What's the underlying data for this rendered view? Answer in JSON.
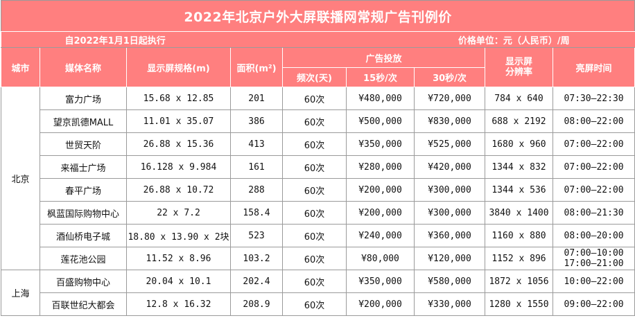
{
  "title": "2022年北京户外大屏联播网常规广告刊例价",
  "effective": "自2022年1月1日起执行",
  "unit": "价格单位：元（人民币）/周",
  "headers": {
    "city": "城市",
    "name": "媒体名称",
    "size": "显示屏规格(m)",
    "area": "面积(m²)",
    "ad": "广告投放",
    "freq": "频次(天)",
    "s15": "15秒/次",
    "s30": "30秒/次",
    "res_l1": "显示屏",
    "res_l2": "分辨率",
    "hours": "亮屏时间"
  },
  "cities": {
    "beijing": "北京",
    "shanghai": "上海"
  },
  "rows": [
    {
      "name": "富力广场",
      "size": "15.68 x 12.85",
      "area": "201",
      "freq": "60次",
      "p15": "¥480,000",
      "p30": "¥720,000",
      "res": "784 x 640",
      "hours": [
        "07:30—22:30"
      ]
    },
    {
      "name": "望京凯德MALL",
      "size": "11.01 x 35.07",
      "area": "386",
      "freq": "60次",
      "p15": "¥500,000",
      "p30": "¥830,000",
      "res": "688 x 2192",
      "hours": [
        "08:00—22:00"
      ]
    },
    {
      "name": "世贸天阶",
      "size": "26.88 x 15.36",
      "area": "413",
      "freq": "60次",
      "p15": "¥350,000",
      "p30": "¥525,000",
      "res": "1680 x 960",
      "hours": [
        "07:00—22:00"
      ]
    },
    {
      "name": "来福士广场",
      "size": "16.128 x 9.984",
      "area": "161",
      "freq": "60次",
      "p15": "¥280,000",
      "p30": "¥420,000",
      "res": "1344 x 832",
      "hours": [
        "07:00—22:00"
      ]
    },
    {
      "name": "春平广场",
      "size": "26.88 x 10.72",
      "area": "288",
      "freq": "60次",
      "p15": "¥200,000",
      "p30": "¥300,000",
      "res": "1344 x 536",
      "hours": [
        "07:00—22:00"
      ]
    },
    {
      "name": "枫蓝国际购物中心",
      "size": "22 x 7.2",
      "area": "158.4",
      "freq": "60次",
      "p15": "¥200,000",
      "p30": "¥300,000",
      "res": "3840 x 1400",
      "hours": [
        "08:00—21:30"
      ]
    },
    {
      "name": "酒仙桥电子城",
      "size": "18.80 x 13.90 x 2块",
      "area": "523",
      "freq": "60次",
      "p15": "¥240,000",
      "p30": "¥360,000",
      "res": "1160 x 880",
      "hours": [
        "08:00—20:00"
      ]
    },
    {
      "name": "莲花池公园",
      "size": "11.52 x 8.96",
      "area": "103.2",
      "freq": "60次",
      "p15": "¥80,000",
      "p30": "¥120,000",
      "res": "1152 x 896",
      "hours": [
        "07:00—10:00",
        "17:00—21:00"
      ]
    },
    {
      "name": "百盛购物中心",
      "size": "20.04 x 10.1",
      "area": "202.4",
      "freq": "60次",
      "p15": "¥350,000",
      "p30": "¥580,000",
      "res": "1872 x 1056",
      "hours": [
        "10:00—22:00"
      ]
    },
    {
      "name": "百联世纪大都会",
      "size": "12.8 x 16.32",
      "area": "208.9",
      "freq": "60次",
      "p15": "¥200,000",
      "p30": "¥330,000",
      "res": "1280 x 1550",
      "hours": [
        "09:00—22:00"
      ]
    }
  ]
}
